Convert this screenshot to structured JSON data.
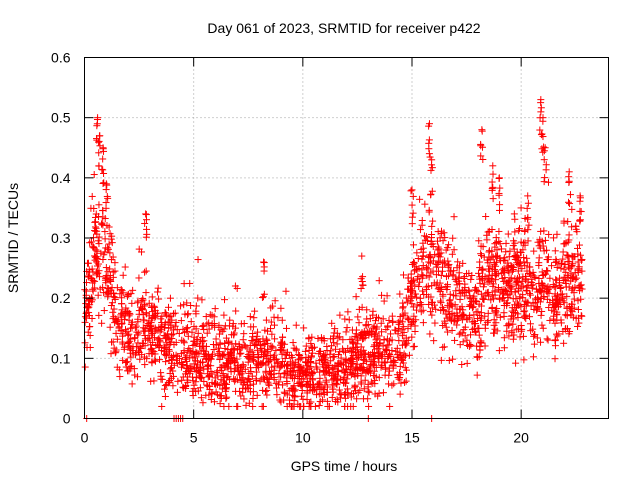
{
  "chart_data": {
    "type": "scatter",
    "title": "Day 061 of 2023, SRMTID for receiver p422",
    "xlabel": "GPS time / hours",
    "ylabel": "SRMTID / TECUs",
    "xlim": [
      0,
      24
    ],
    "ylim": [
      0,
      0.6
    ],
    "xticks": [
      0,
      5,
      10,
      15,
      20
    ],
    "xtick_labels": [
      "0",
      "5",
      "10",
      "15",
      "20"
    ],
    "yticks": [
      0,
      0.1,
      0.2,
      0.3,
      0.4,
      0.5,
      0.6
    ],
    "ytick_labels": [
      "0",
      "0.1",
      "0.2",
      "0.3",
      "0.4",
      "0.5",
      "0.6"
    ],
    "grid": true,
    "marker": "plus",
    "color": "#ff0000",
    "series": [
      {
        "name": "SRMTID",
        "trend": [
          [
            0.0,
            0.17
          ],
          [
            0.25,
            0.22
          ],
          [
            0.5,
            0.27
          ],
          [
            0.75,
            0.3
          ],
          [
            1.0,
            0.27
          ],
          [
            1.3,
            0.2
          ],
          [
            1.6,
            0.16
          ],
          [
            2.0,
            0.14
          ],
          [
            2.5,
            0.14
          ],
          [
            3.0,
            0.14
          ],
          [
            3.5,
            0.13
          ],
          [
            4.0,
            0.12
          ],
          [
            4.5,
            0.11
          ],
          [
            5.0,
            0.11
          ],
          [
            5.5,
            0.1
          ],
          [
            6.0,
            0.1
          ],
          [
            6.5,
            0.09
          ],
          [
            7.0,
            0.09
          ],
          [
            7.5,
            0.09
          ],
          [
            8.0,
            0.09
          ],
          [
            8.5,
            0.1
          ],
          [
            9.0,
            0.09
          ],
          [
            9.5,
            0.07
          ],
          [
            10.0,
            0.07
          ],
          [
            10.5,
            0.07
          ],
          [
            11.0,
            0.08
          ],
          [
            11.5,
            0.08
          ],
          [
            12.0,
            0.08
          ],
          [
            12.5,
            0.1
          ],
          [
            13.0,
            0.11
          ],
          [
            13.5,
            0.12
          ],
          [
            14.0,
            0.11
          ],
          [
            14.5,
            0.11
          ],
          [
            15.0,
            0.2
          ],
          [
            15.5,
            0.25
          ],
          [
            16.0,
            0.24
          ],
          [
            16.5,
            0.22
          ],
          [
            17.0,
            0.19
          ],
          [
            17.5,
            0.18
          ],
          [
            18.0,
            0.19
          ],
          [
            18.5,
            0.23
          ],
          [
            19.0,
            0.22
          ],
          [
            19.5,
            0.21
          ],
          [
            20.0,
            0.23
          ],
          [
            20.5,
            0.21
          ],
          [
            21.0,
            0.23
          ],
          [
            21.5,
            0.2
          ],
          [
            22.0,
            0.22
          ],
          [
            22.5,
            0.24
          ],
          [
            22.8,
            0.22
          ]
        ],
        "peaks": [
          [
            0.6,
            0.5
          ],
          [
            0.7,
            0.47
          ],
          [
            0.85,
            0.45
          ],
          [
            1.0,
            0.39
          ],
          [
            2.8,
            0.34
          ],
          [
            8.2,
            0.26
          ],
          [
            12.7,
            0.27
          ],
          [
            15.0,
            0.38
          ],
          [
            15.8,
            0.49
          ],
          [
            15.9,
            0.43
          ],
          [
            18.2,
            0.48
          ],
          [
            18.7,
            0.42
          ],
          [
            19.0,
            0.4
          ],
          [
            20.3,
            0.37
          ],
          [
            20.9,
            0.53
          ],
          [
            21.0,
            0.5
          ],
          [
            21.1,
            0.45
          ],
          [
            22.2,
            0.41
          ],
          [
            22.7,
            0.37
          ]
        ],
        "zero_points": [
          0.1,
          4.1,
          4.2,
          4.3,
          4.4,
          4.5,
          13.0,
          15.9
        ],
        "spread": 0.045,
        "count": 2600
      }
    ]
  }
}
